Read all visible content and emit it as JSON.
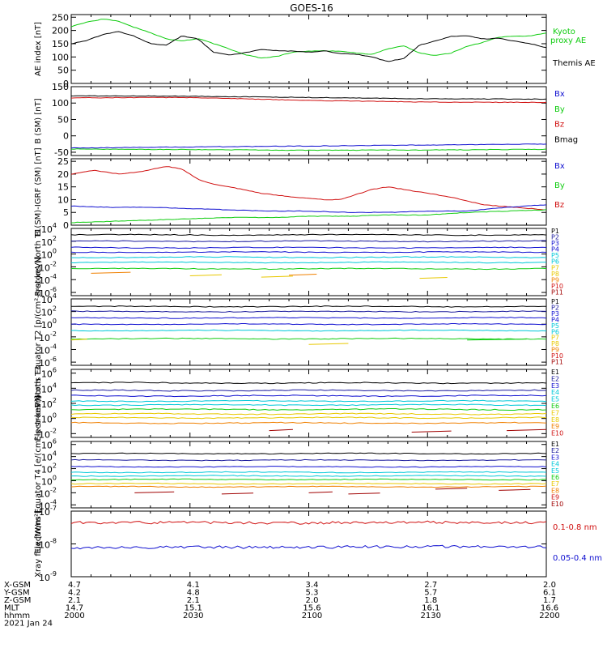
{
  "title": "GOES-16",
  "colors": {
    "axis": "#000000",
    "red": "#d01010",
    "green": "#10cc10",
    "blue": "#1010d0",
    "black": "#000000",
    "navy": "#1a1a9c",
    "cyan": "#00c8d8",
    "yellow": "#e8c800",
    "orange": "#f08000",
    "darkred": "#a00000"
  },
  "ephemeris": {
    "row_labels": [
      "X-GSM",
      "Y-GSM",
      "Z-GSM",
      "MLT",
      "hhmm"
    ],
    "date": "2021 Jan 24",
    "columns": [
      [
        "4.7",
        "4.2",
        "2.1",
        "14.7",
        "2000"
      ],
      [
        "4.1",
        "4.8",
        "2.1",
        "15.1",
        "2030"
      ],
      [
        "3.4",
        "5.3",
        "2.0",
        "15.6",
        "2100"
      ],
      [
        "2.7",
        "5.7",
        "1.8",
        "16.1",
        "2130"
      ],
      [
        "2.0",
        "6.1",
        "1.7",
        "16.6",
        "2200"
      ]
    ]
  },
  "chart_data": [
    {
      "type": "line",
      "ylabel": "AE index [nT]",
      "yticks": [
        "0",
        "50",
        "100",
        "150",
        "200",
        "250"
      ],
      "ylim": [
        0,
        260
      ],
      "x_range": [
        "2000",
        "2200"
      ],
      "legend": [
        {
          "text": "Kyoto",
          "color": "green"
        },
        {
          "text": "proxy AE",
          "color": "green"
        },
        {
          "text": "Themis AE",
          "color": "black"
        }
      ],
      "series": [
        {
          "name": "Kyoto proxy AE",
          "color": "green",
          "x": [
            0,
            4,
            8,
            12,
            16,
            20,
            24,
            28,
            32,
            36,
            40,
            44,
            48,
            52,
            56,
            60,
            64,
            68,
            72,
            76,
            80,
            84,
            88,
            92,
            96,
            100,
            104,
            108,
            112,
            116,
            120
          ],
          "y": [
            215,
            232,
            243,
            235,
            212,
            192,
            168,
            160,
            170,
            150,
            130,
            108,
            96,
            102,
            118,
            122,
            123,
            122,
            115,
            110,
            130,
            142,
            115,
            105,
            115,
            140,
            155,
            175,
            178,
            180,
            190
          ]
        },
        {
          "name": "Themis AE",
          "color": "black",
          "x": [
            0,
            4,
            8,
            12,
            16,
            20,
            24,
            28,
            32,
            36,
            40,
            44,
            48,
            52,
            56,
            60,
            64,
            68,
            72,
            76,
            80,
            84,
            88,
            92,
            96,
            100,
            104,
            108,
            112,
            116,
            120
          ],
          "y": [
            150,
            162,
            185,
            196,
            178,
            150,
            145,
            180,
            168,
            118,
            108,
            116,
            128,
            124,
            122,
            118,
            123,
            113,
            110,
            100,
            82,
            95,
            145,
            160,
            178,
            180,
            168,
            170,
            160,
            150,
            135
          ]
        }
      ]
    },
    {
      "type": "line",
      "ylabel": "B (SM) [nT]",
      "yticks": [
        "-50",
        "0",
        "50",
        "100",
        "150"
      ],
      "ylim": [
        -60,
        150
      ],
      "legend": [
        {
          "text": "Bx",
          "color": "blue"
        },
        {
          "text": "By",
          "color": "green"
        },
        {
          "text": "Bz",
          "color": "red"
        },
        {
          "text": "Bmag",
          "color": "black"
        }
      ],
      "series": [
        {
          "name": "Bmag",
          "color": "black",
          "x": [
            0,
            30,
            60,
            90,
            120
          ],
          "y": [
            122,
            121,
            117,
            113,
            112
          ]
        },
        {
          "name": "Bz",
          "color": "red",
          "x": [
            0,
            30,
            60,
            90,
            120
          ],
          "y": [
            116,
            117,
            108,
            103,
            102
          ]
        },
        {
          "name": "Bx",
          "color": "blue",
          "x": [
            0,
            30,
            60,
            90,
            120
          ],
          "y": [
            -37,
            -34,
            -31,
            -28,
            -25
          ]
        },
        {
          "name": "By",
          "color": "green",
          "x": [
            0,
            30,
            60,
            90,
            120
          ],
          "y": [
            -40,
            -42,
            -44,
            -43,
            -41
          ]
        }
      ]
    },
    {
      "type": "line",
      "ylabel": "B (SM)-IGRF (SM) [nT]",
      "yticks": [
        "0",
        "5",
        "10",
        "15",
        "20",
        "25"
      ],
      "ylim": [
        0,
        26
      ],
      "legend": [
        {
          "text": "Bx",
          "color": "blue"
        },
        {
          "text": "By",
          "color": "green"
        },
        {
          "text": "Bz",
          "color": "red"
        }
      ],
      "series": [
        {
          "name": "Bz",
          "color": "red",
          "x": [
            0,
            6,
            12,
            18,
            24,
            28,
            32,
            36,
            40,
            48,
            56,
            64,
            68,
            72,
            76,
            80,
            88,
            96,
            104,
            112,
            120
          ],
          "y": [
            20,
            21.5,
            20,
            21,
            23,
            22,
            18,
            16,
            15,
            12.5,
            11,
            10,
            10,
            12,
            14,
            15,
            13,
            11,
            8,
            7,
            6
          ]
        },
        {
          "name": "Bx",
          "color": "blue",
          "x": [
            0,
            10,
            20,
            30,
            40,
            50,
            60,
            70,
            80,
            90,
            100,
            110,
            120
          ],
          "y": [
            7.5,
            7,
            7,
            6.5,
            6,
            5.5,
            5.5,
            5,
            5,
            5.5,
            5.5,
            7,
            8
          ]
        },
        {
          "name": "By",
          "color": "green",
          "x": [
            0,
            10,
            20,
            30,
            40,
            50,
            60,
            70,
            80,
            90,
            100,
            110,
            120
          ],
          "y": [
            1,
            1.5,
            2,
            2.5,
            3,
            3,
            3.5,
            3.5,
            4,
            4,
            5,
            5.5,
            6
          ]
        }
      ]
    },
    {
      "type": "line",
      "ylabel": "Protons North T1",
      "ytick_labels": [
        [
          "10",
          "4"
        ],
        [
          "10",
          "2"
        ],
        [
          "10",
          "0"
        ],
        [
          "10",
          "-2"
        ],
        [
          "10",
          "-4"
        ],
        [
          "10",
          "-6"
        ]
      ],
      "ylim_log": [
        -6.5,
        4
      ],
      "channels": [
        {
          "text": "P1",
          "color": "black"
        },
        {
          "text": "P2",
          "color": "navy"
        },
        {
          "text": "P3",
          "color": "blue"
        },
        {
          "text": "P4",
          "color": "blue"
        },
        {
          "text": "P5",
          "color": "cyan"
        },
        {
          "text": "P6",
          "color": "cyan"
        },
        {
          "text": "P7",
          "color": "yellow"
        },
        {
          "text": "P8",
          "color": "yellow"
        },
        {
          "text": "P9",
          "color": "orange"
        },
        {
          "text": "P10",
          "color": "red"
        },
        {
          "text": "P11",
          "color": "darkred"
        }
      ],
      "levels": [
        {
          "channel": "P1",
          "color": "black",
          "log": 3.0
        },
        {
          "channel": "P2",
          "color": "navy",
          "log": 2.0
        },
        {
          "channel": "P3",
          "color": "blue",
          "log": 1.0
        },
        {
          "channel": "P4",
          "color": "blue",
          "log": 0.3
        },
        {
          "channel": "P5",
          "color": "cyan",
          "log": -0.5
        },
        {
          "channel": "P6",
          "color": "cyan",
          "log": -1.3
        },
        {
          "channel": "P7",
          "color": "green",
          "log": -2.3
        }
      ],
      "fragments": [
        {
          "color": "orange",
          "segments": [
            [
              5,
              15,
              -3.0
            ],
            [
              55,
              62,
              -3.3
            ]
          ]
        },
        {
          "color": "yellow",
          "segments": [
            [
              30,
              38,
              -3.4
            ],
            [
              48,
              56,
              -3.6
            ],
            [
              88,
              95,
              -3.8
            ]
          ]
        }
      ]
    },
    {
      "type": "line",
      "ylabel": "Protons Equator T2 [p/(cm²-s-sr-keV)]",
      "ytick_labels": [
        [
          "10",
          "4"
        ],
        [
          "10",
          "2"
        ],
        [
          "10",
          "0"
        ],
        [
          "10",
          "-2"
        ],
        [
          "10",
          "-4"
        ],
        [
          "10",
          "-6"
        ]
      ],
      "ylim_log": [
        -6.5,
        4
      ],
      "channels": [
        {
          "text": "P1",
          "color": "black"
        },
        {
          "text": "P2",
          "color": "navy"
        },
        {
          "text": "P3",
          "color": "blue"
        },
        {
          "text": "P4",
          "color": "blue"
        },
        {
          "text": "P5",
          "color": "cyan"
        },
        {
          "text": "P6",
          "color": "cyan"
        },
        {
          "text": "P7",
          "color": "yellow"
        },
        {
          "text": "P8",
          "color": "yellow"
        },
        {
          "text": "P9",
          "color": "orange"
        },
        {
          "text": "P10",
          "color": "red"
        },
        {
          "text": "P11",
          "color": "darkred"
        }
      ],
      "levels": [
        {
          "channel": "P1",
          "color": "black",
          "log": 2.8
        },
        {
          "channel": "P2",
          "color": "navy",
          "log": 2.0
        },
        {
          "channel": "P3",
          "color": "blue",
          "log": 1.0
        },
        {
          "channel": "P4",
          "color": "blue",
          "log": 0.0
        },
        {
          "channel": "P5",
          "color": "cyan",
          "log": -1.0
        },
        {
          "channel": "P6",
          "color": "green",
          "log": -2.3
        }
      ],
      "fragments": [
        {
          "color": "yellow",
          "segments": [
            [
              0,
              4,
              -2.5
            ],
            [
              60,
              70,
              -3.2
            ]
          ]
        },
        {
          "color": "green",
          "segments": [
            [
              100,
              115,
              -2.5
            ]
          ]
        }
      ]
    },
    {
      "type": "line",
      "ylabel": "Electrons North T3",
      "ytick_labels": [
        [
          "10",
          "6"
        ],
        [
          "10",
          "4"
        ],
        [
          "10",
          "2"
        ],
        [
          "10",
          "0"
        ],
        [
          "10",
          "-2"
        ]
      ],
      "ylim_log": [
        -2.5,
        6.5
      ],
      "channels": [
        {
          "text": "E1",
          "color": "black"
        },
        {
          "text": "E2",
          "color": "navy"
        },
        {
          "text": "E3",
          "color": "blue"
        },
        {
          "text": "E4",
          "color": "cyan"
        },
        {
          "text": "E5",
          "color": "cyan"
        },
        {
          "text": "E6",
          "color": "green"
        },
        {
          "text": "E7",
          "color": "yellow"
        },
        {
          "text": "E8",
          "color": "yellow"
        },
        {
          "text": "E9",
          "color": "orange"
        },
        {
          "text": "E10",
          "color": "red"
        }
      ],
      "levels": [
        {
          "channel": "E1",
          "color": "black",
          "log": 4.7
        },
        {
          "channel": "E2",
          "color": "navy",
          "log": 3.7
        },
        {
          "channel": "E3",
          "color": "blue",
          "log": 3.0
        },
        {
          "channel": "E4",
          "color": "cyan",
          "log": 2.3
        },
        {
          "channel": "E5",
          "color": "cyan",
          "log": 1.8
        },
        {
          "channel": "E6",
          "color": "green",
          "log": 1.2
        },
        {
          "channel": "E7",
          "color": "yellow",
          "log": 0.6
        },
        {
          "channel": "E8",
          "color": "yellow",
          "log": 0.1
        },
        {
          "channel": "E9",
          "color": "orange",
          "log": -0.6
        }
      ],
      "fragments": [
        {
          "color": "darkred",
          "segments": [
            [
              50,
              56,
              -1.6
            ],
            [
              86,
              96,
              -1.8
            ],
            [
              110,
              120,
              -1.6
            ]
          ]
        }
      ]
    },
    {
      "type": "line",
      "ylabel": "Electrons Equator T4 [e/(cm²-s-sr-keV)]",
      "ytick_labels": [
        [
          "10",
          "6"
        ],
        [
          "10",
          "4"
        ],
        [
          "10",
          "2"
        ],
        [
          "10",
          "0"
        ],
        [
          "10",
          "-2"
        ],
        [
          "10",
          "-4"
        ]
      ],
      "ylim_log": [
        -4.5,
        6.5
      ],
      "channels": [
        {
          "text": "E1",
          "color": "black"
        },
        {
          "text": "E2",
          "color": "navy"
        },
        {
          "text": "E3",
          "color": "blue"
        },
        {
          "text": "E4",
          "color": "cyan"
        },
        {
          "text": "E5",
          "color": "cyan"
        },
        {
          "text": "E6",
          "color": "green"
        },
        {
          "text": "E7",
          "color": "yellow"
        },
        {
          "text": "E8",
          "color": "orange"
        },
        {
          "text": "E9",
          "color": "red"
        },
        {
          "text": "E10",
          "color": "darkred"
        }
      ],
      "levels": [
        {
          "channel": "E1",
          "color": "black",
          "log": 4.5
        },
        {
          "channel": "E2",
          "color": "navy",
          "log": 3.4
        },
        {
          "channel": "E3",
          "color": "blue",
          "log": 2.3
        },
        {
          "channel": "E4",
          "color": "cyan",
          "log": 1.4
        },
        {
          "channel": "E5",
          "color": "cyan",
          "log": 0.8
        },
        {
          "channel": "E6",
          "color": "green",
          "log": 0.2
        },
        {
          "channel": "E7",
          "color": "yellow",
          "log": -0.5
        },
        {
          "channel": "E8",
          "color": "orange",
          "log": -1.0
        }
      ],
      "fragments": [
        {
          "color": "darkred",
          "segments": [
            [
              16,
              26,
              -2.0
            ],
            [
              38,
              46,
              -2.2
            ],
            [
              60,
              66,
              -2.0
            ],
            [
              70,
              78,
              -2.2
            ],
            [
              92,
              100,
              -1.4
            ],
            [
              108,
              116,
              -1.6
            ]
          ]
        }
      ]
    },
    {
      "type": "line",
      "ylabel": "Xray flux [W/m²]",
      "ytick_labels": [
        [
          "10",
          "-7"
        ],
        [
          "10",
          "-8"
        ],
        [
          "10",
          "-9"
        ]
      ],
      "ylim_log": [
        -9,
        -7
      ],
      "legend": [
        {
          "text": "0.1-0.8 nm",
          "color": "red"
        },
        {
          "text": "0.05-0.4 nm",
          "color": "blue"
        }
      ],
      "series": [
        {
          "name": "0.1-0.8 nm",
          "color": "red",
          "x": [
            0,
            30,
            60,
            90,
            120
          ],
          "log": [
            -7.35,
            -7.35,
            -7.36,
            -7.34,
            -7.35
          ]
        },
        {
          "name": "0.05-0.4 nm",
          "color": "blue",
          "x": [
            0,
            30,
            60,
            90,
            120
          ],
          "log": [
            -8.12,
            -8.1,
            -8.1,
            -8.08,
            -8.1
          ]
        }
      ]
    }
  ]
}
